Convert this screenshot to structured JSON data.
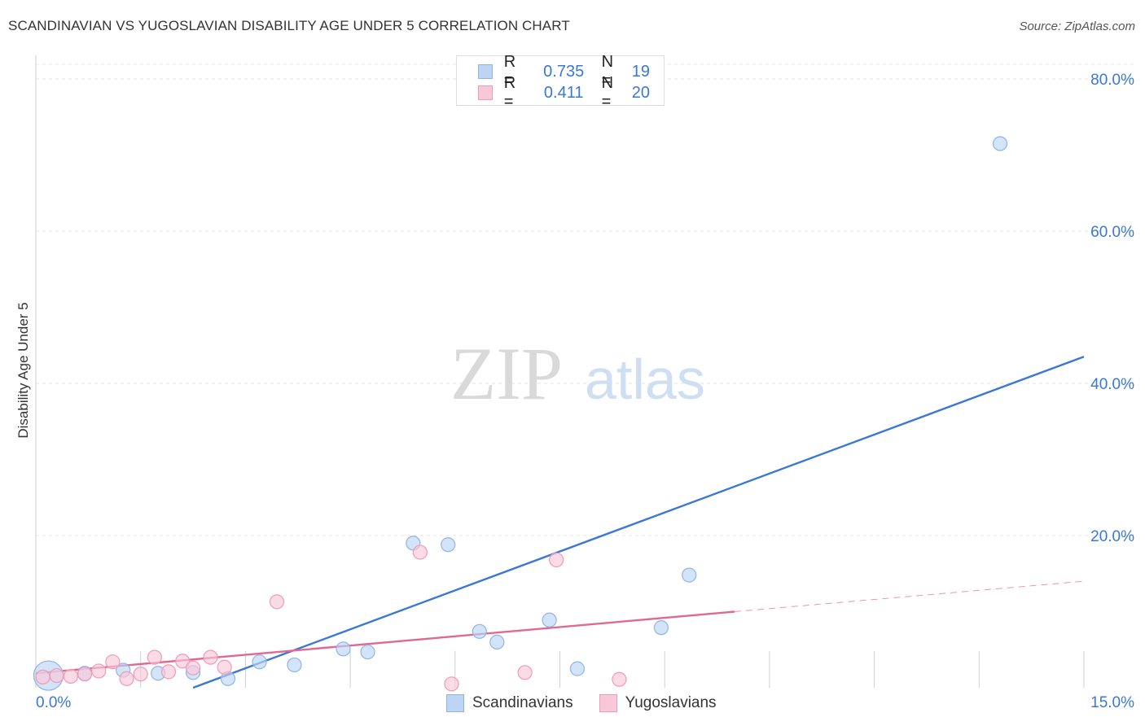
{
  "title": "SCANDINAVIAN VS YUGOSLAVIAN DISABILITY AGE UNDER 5 CORRELATION CHART",
  "source": "Source: ZipAtlas.com",
  "watermark": {
    "zip": "ZIP",
    "atlas": "atlas"
  },
  "legend": {
    "rows": [
      {
        "r_label": "R =",
        "r_value": "0.735",
        "n_label": "N =",
        "n_value": "19",
        "color": "#3a78d4"
      },
      {
        "r_label": "R =",
        "r_value": "0.411",
        "n_label": "N =",
        "n_value": "20",
        "color": "#e0698f"
      }
    ]
  },
  "bottom_legend": {
    "items": [
      {
        "label": "Scandinavians",
        "color": "#bcd5f5"
      },
      {
        "label": "Yugoslavians",
        "color": "#f9c8d8"
      }
    ]
  },
  "chart_data": {
    "type": "scatter",
    "title": "SCANDINAVIAN VS YUGOSLAVIAN DISABILITY AGE UNDER 5 CORRELATION CHART",
    "xlabel": "",
    "ylabel": "Disability Age Under 5",
    "xlim": [
      0,
      15
    ],
    "ylim": [
      0,
      80
    ],
    "x_tick_labels": [
      {
        "value": 0,
        "label": "0.0%"
      },
      {
        "value": 15,
        "label": "15.0%"
      }
    ],
    "y_tick_labels": [
      {
        "value": 20,
        "label": "20.0%"
      },
      {
        "value": 40,
        "label": "40.0%"
      },
      {
        "value": 60,
        "label": "60.0%"
      },
      {
        "value": 80,
        "label": "80.0%"
      }
    ],
    "series": [
      {
        "name": "Scandinavians",
        "color": "#3a78d4",
        "fill": "#bcd5f5",
        "stroke": "#8fb4e6",
        "points": [
          {
            "x": 0.18,
            "y": 1.6,
            "big": true
          },
          {
            "x": 0.7,
            "y": 1.9
          },
          {
            "x": 1.25,
            "y": 2.3
          },
          {
            "x": 1.75,
            "y": 1.9
          },
          {
            "x": 2.25,
            "y": 2.0
          },
          {
            "x": 2.75,
            "y": 1.2
          },
          {
            "x": 3.2,
            "y": 3.4
          },
          {
            "x": 3.7,
            "y": 3.0
          },
          {
            "x": 4.4,
            "y": 5.1
          },
          {
            "x": 4.75,
            "y": 4.7
          },
          {
            "x": 5.4,
            "y": 19.0
          },
          {
            "x": 5.9,
            "y": 18.8
          },
          {
            "x": 6.35,
            "y": 7.4
          },
          {
            "x": 6.6,
            "y": 6.0
          },
          {
            "x": 7.35,
            "y": 8.9
          },
          {
            "x": 7.75,
            "y": 2.5
          },
          {
            "x": 8.95,
            "y": 7.9
          },
          {
            "x": 9.35,
            "y": 14.8
          },
          {
            "x": 13.8,
            "y": 71.5
          }
        ],
        "trend": {
          "x1": 2.25,
          "y1": 0,
          "x2": 15.0,
          "y2": 43.5,
          "dashed_to": null
        }
      },
      {
        "name": "Yugoslavians",
        "color": "#e0698f",
        "fill": "#f9c8d8",
        "stroke": "#ef9bb7",
        "points": [
          {
            "x": 0.1,
            "y": 1.4
          },
          {
            "x": 0.3,
            "y": 1.6
          },
          {
            "x": 0.5,
            "y": 1.5
          },
          {
            "x": 0.7,
            "y": 1.8
          },
          {
            "x": 0.9,
            "y": 2.2
          },
          {
            "x": 1.1,
            "y": 3.4
          },
          {
            "x": 1.3,
            "y": 1.2
          },
          {
            "x": 1.5,
            "y": 1.8
          },
          {
            "x": 1.7,
            "y": 4.0
          },
          {
            "x": 1.9,
            "y": 2.1
          },
          {
            "x": 2.1,
            "y": 3.5
          },
          {
            "x": 2.25,
            "y": 2.6
          },
          {
            "x": 2.5,
            "y": 4.0
          },
          {
            "x": 2.7,
            "y": 2.7
          },
          {
            "x": 3.45,
            "y": 11.3
          },
          {
            "x": 5.5,
            "y": 17.8
          },
          {
            "x": 5.95,
            "y": 0.5
          },
          {
            "x": 7.0,
            "y": 2.0
          },
          {
            "x": 7.45,
            "y": 16.8
          },
          {
            "x": 8.35,
            "y": 1.1
          }
        ],
        "trend": {
          "x1": 0,
          "y1": 1.9,
          "x2": 10.0,
          "y2": 10.0,
          "dashed_to": {
            "x": 15.0,
            "y": 14.0
          }
        }
      }
    ]
  }
}
